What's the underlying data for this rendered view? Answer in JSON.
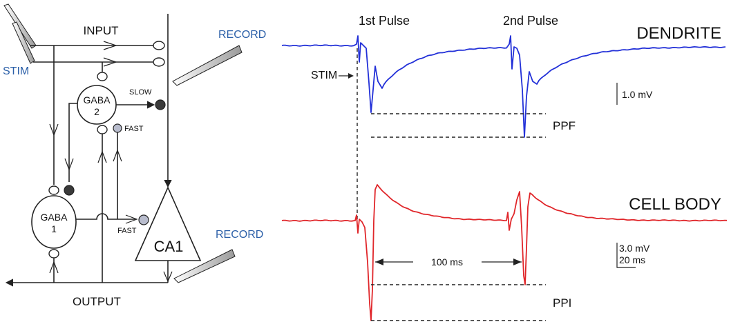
{
  "circuit": {
    "input_label": "INPUT",
    "output_label": "OUTPUT",
    "stim_label": "STIM",
    "record_top_label": "RECORD",
    "record_bottom_label": "RECORD",
    "gaba2_line1": "GABA",
    "gaba2_line2": "2",
    "gaba1_line1": "GABA",
    "gaba1_line2": "1",
    "ca1_label": "CA1",
    "slow_label": "SLOW",
    "fast_top_label": "FAST",
    "fast_bottom_label": "FAST"
  },
  "traces": {
    "pulse1_label": "1st Pulse",
    "pulse2_label": "2nd Pulse",
    "dendrite_label": "DENDRITE",
    "cellbody_label": "CELL BODY",
    "stim_label": "STIM",
    "ppf_label": "PPF",
    "ppi_label": "PPI",
    "interval_label": "100 ms",
    "scale_dendrite": "1.0 mV",
    "scale_cell_mv": "3.0 mV",
    "scale_cell_ms": "20  ms"
  },
  "colors": {
    "dendrite_trace": "#2230d8",
    "cellbody_trace": "#e0262a",
    "record_label": "#2b5fa8",
    "slow_synapse": "#3a3a3a",
    "fast_synapse": "#b8bccd"
  }
}
